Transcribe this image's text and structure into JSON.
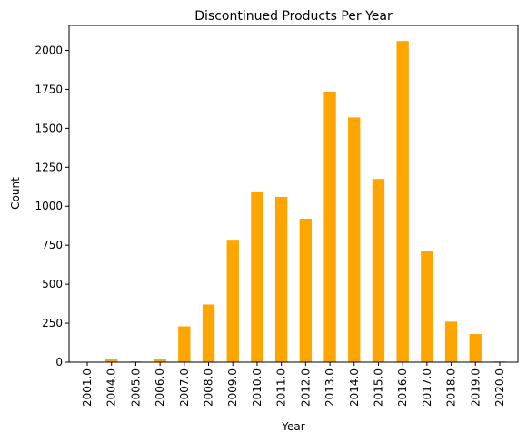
{
  "chart_data": {
    "type": "bar",
    "title": "Discontinued Products Per Year",
    "xlabel": "Year",
    "ylabel": "Count",
    "categories": [
      "2001.0",
      "2004.0",
      "2005.0",
      "2006.0",
      "2007.0",
      "2008.0",
      "2009.0",
      "2010.0",
      "2011.0",
      "2012.0",
      "2013.0",
      "2014.0",
      "2015.0",
      "2016.0",
      "2017.0",
      "2018.0",
      "2019.0",
      "2020.0"
    ],
    "values": [
      2,
      18,
      5,
      18,
      230,
      370,
      785,
      1095,
      1060,
      920,
      1735,
      1570,
      1175,
      2060,
      710,
      260,
      180,
      5
    ],
    "ylim": [
      0,
      2160
    ],
    "yticks": [
      0,
      250,
      500,
      750,
      1000,
      1250,
      1500,
      1750,
      2000
    ],
    "ytick_labels": [
      "0",
      "250",
      "500",
      "750",
      "1000",
      "1250",
      "1500",
      "1750",
      "2000"
    ],
    "bar_color": "#ffa500",
    "grid": false,
    "legend": false
  }
}
